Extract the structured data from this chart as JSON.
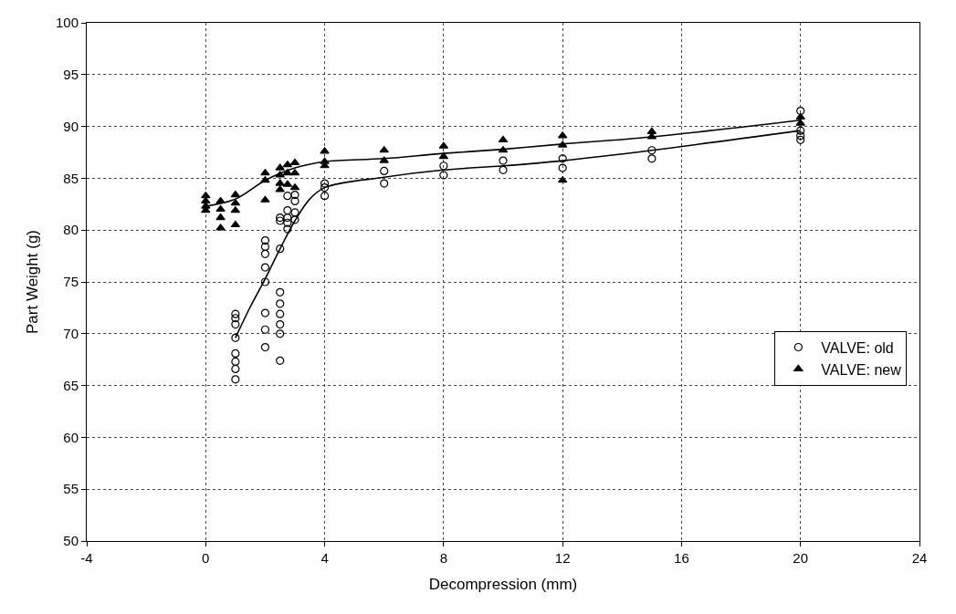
{
  "chart_data": {
    "type": "scatter",
    "xlabel": "Decompression (mm)",
    "ylabel": "Part Weight (g)",
    "xlim": [
      -4,
      24
    ],
    "xticks": [
      -4,
      0,
      4,
      8,
      12,
      16,
      20,
      24
    ],
    "ylim": [
      50,
      100
    ],
    "yticks": [
      50,
      55,
      60,
      65,
      70,
      75,
      80,
      85,
      90,
      95,
      100
    ],
    "grid": true,
    "legend": "bottom right",
    "series": [
      {
        "name": "VALVE: old",
        "color": "#000000",
        "marker": "circle",
        "x": [
          1,
          1,
          1,
          1,
          1,
          1,
          1,
          1,
          2,
          2,
          2,
          2,
          2,
          2,
          2,
          2,
          2.5,
          2.5,
          2.5,
          2.5,
          2.5,
          2.5,
          2.5,
          2.5,
          2.5,
          2.75,
          2.75,
          2.75,
          2.75,
          2.75,
          3,
          3,
          3,
          3,
          4,
          4,
          4,
          6,
          6,
          8,
          8,
          10,
          10,
          12,
          12,
          15,
          15,
          20,
          20,
          20,
          20
        ],
        "values": [
          71.9,
          71.5,
          70.9,
          69.6,
          68.1,
          67.3,
          66.6,
          65.6,
          79.0,
          78.4,
          77.7,
          76.4,
          75.0,
          72.0,
          70.4,
          68.7,
          81.2,
          80.9,
          78.2,
          74.0,
          72.9,
          71.9,
          70.9,
          70.0,
          67.4,
          83.3,
          81.9,
          81.2,
          80.7,
          80.1,
          83.4,
          82.8,
          81.7,
          81.0,
          84.5,
          84.1,
          83.3,
          85.7,
          84.5,
          86.2,
          85.3,
          86.7,
          85.8,
          86.9,
          86.0,
          87.7,
          86.9,
          91.5,
          89.6,
          89.1,
          88.7
        ]
      },
      {
        "name": "VALVE: new",
        "color": "#000000",
        "marker": "triangle",
        "x": [
          0,
          0,
          0,
          0,
          0.5,
          0.5,
          0.5,
          0.5,
          1,
          1,
          1,
          1,
          2,
          2,
          2,
          2.5,
          2.5,
          2.5,
          2.5,
          2.75,
          2.75,
          2.75,
          3,
          3,
          3,
          4,
          4,
          4,
          6,
          6,
          8,
          8,
          10,
          10,
          12,
          12,
          12,
          15,
          15,
          20,
          20
        ],
        "values": [
          83.3,
          82.8,
          82.3,
          81.9,
          82.8,
          82.0,
          81.2,
          80.2,
          83.4,
          82.6,
          81.9,
          80.5,
          85.5,
          84.8,
          82.9,
          86.0,
          85.3,
          84.5,
          83.9,
          86.3,
          85.5,
          84.4,
          86.5,
          85.5,
          84.1,
          87.6,
          86.6,
          86.2,
          87.7,
          86.7,
          88.1,
          87.1,
          88.7,
          87.7,
          89.1,
          88.2,
          84.8,
          89.5,
          89.0,
          90.9,
          90.3
        ]
      },
      {
        "color": "#000000",
        "type": "line",
        "line_style": "solid",
        "marker": "none",
        "x": [
          1,
          1.5,
          2,
          2.5,
          3,
          3.5,
          4,
          6,
          8,
          10,
          12,
          15,
          20
        ],
        "values": [
          69.6,
          72.6,
          75.3,
          78.2,
          80.9,
          83.0,
          84.1,
          85.1,
          85.8,
          86.2,
          86.7,
          87.7,
          89.6
        ]
      },
      {
        "color": "#000000",
        "type": "line",
        "line_style": "solid",
        "marker": "none",
        "x": [
          0,
          1,
          2,
          3,
          4,
          6,
          8,
          10,
          12,
          15,
          20
        ],
        "values": [
          82.3,
          83.0,
          84.8,
          86.0,
          86.6,
          86.9,
          87.4,
          87.8,
          88.3,
          89.0,
          90.6
        ]
      }
    ]
  }
}
